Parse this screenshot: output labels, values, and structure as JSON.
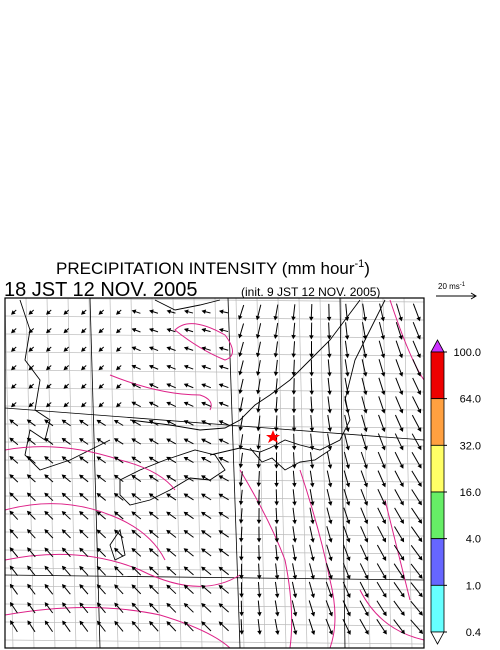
{
  "title": {
    "text": "PRECIPITATION INTENSITY (mm hour",
    "superscript": "-1",
    "close": ")"
  },
  "valid_time": "18 JST 12 NOV. 2005",
  "init_time": "(init. 9 JST 12 NOV. 2005)",
  "wind_scale": {
    "text": "20 ms",
    "superscript": "-1"
  },
  "colorbar": {
    "levels": [
      {
        "value": 100,
        "label": "100.0"
      },
      {
        "value": 64,
        "label": "64.0"
      },
      {
        "value": 32,
        "label": "32.0"
      },
      {
        "value": 16,
        "label": "16.0"
      },
      {
        "value": 4,
        "label": "4.0"
      },
      {
        "value": 1,
        "label": "1.0"
      },
      {
        "value": 0.4,
        "label": "0.4"
      }
    ],
    "colors": [
      "#cc33ff",
      "#ee0000",
      "#ffa040",
      "#ffff66",
      "#66ee66",
      "#6666ff",
      "#66ffff",
      "#ffffff"
    ]
  }
}
